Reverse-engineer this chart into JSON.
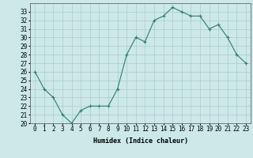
{
  "x": [
    0,
    1,
    2,
    3,
    4,
    5,
    6,
    7,
    8,
    9,
    10,
    11,
    12,
    13,
    14,
    15,
    16,
    17,
    18,
    19,
    20,
    21,
    22,
    23
  ],
  "y": [
    26,
    24,
    23,
    21,
    20,
    21.5,
    22,
    22,
    22,
    24,
    28,
    30,
    29.5,
    32,
    32.5,
    33.5,
    33,
    32.5,
    32.5,
    31,
    31.5,
    30,
    28,
    27
  ],
  "line_color": "#2e7d6e",
  "marker": "+",
  "marker_size": 3,
  "marker_color": "#2e7d6e",
  "bg_color": "#cce8e8",
  "grid_color": "#aacccc",
  "xlabel": "Humidex (Indice chaleur)",
  "xlim": [
    -0.5,
    23.5
  ],
  "ylim": [
    20,
    34
  ],
  "yticks": [
    20,
    21,
    22,
    23,
    24,
    25,
    26,
    27,
    28,
    29,
    30,
    31,
    32,
    33
  ],
  "xticks": [
    0,
    1,
    2,
    3,
    4,
    5,
    6,
    7,
    8,
    9,
    10,
    11,
    12,
    13,
    14,
    15,
    16,
    17,
    18,
    19,
    20,
    21,
    22,
    23
  ],
  "label_fontsize": 6,
  "tick_fontsize": 5.5
}
